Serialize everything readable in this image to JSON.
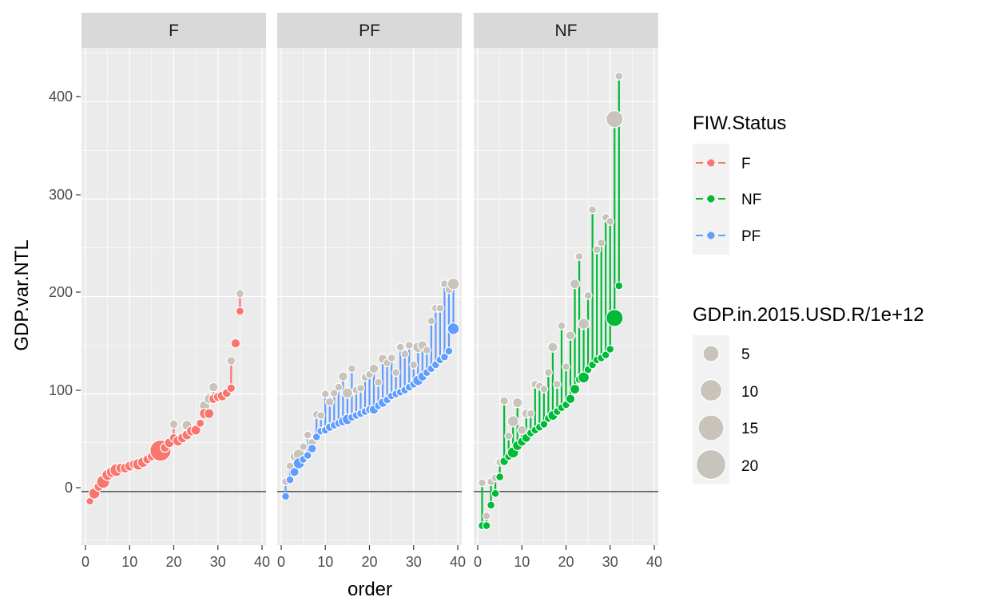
{
  "chart_data": {
    "type": "scatter",
    "xlabel": "order",
    "ylabel": "GDP.var.NTL",
    "xlim": [
      0,
      40
    ],
    "ylim": [
      -55,
      455
    ],
    "x_ticks": [
      0,
      10,
      20,
      30,
      40
    ],
    "y_ticks": [
      0,
      100,
      200,
      300,
      400
    ],
    "grid": true,
    "legend_placement": "right",
    "colors": {
      "F": "#F8766D",
      "NF": "#00BA38",
      "PF": "#619CFF",
      "marker": "#C8C4BC",
      "panel": "#EBEBEB",
      "strip": "#D9D9D9"
    },
    "color_legend": {
      "title": "FIW.Status",
      "entries": [
        "F",
        "NF",
        "PF"
      ]
    },
    "size_legend": {
      "title": "GDP.in.2015.USD.R/1e+12",
      "entries": [
        5,
        10,
        15,
        20
      ]
    },
    "facets": [
      {
        "label": "F",
        "status": "F",
        "points": [
          {
            "x": 1,
            "y_status": -10,
            "y_grey": -10,
            "size": 0.4
          },
          {
            "x": 2,
            "y_status": -2,
            "y_grey": -2,
            "size": 2.5
          },
          {
            "x": 3,
            "y_status": 5,
            "y_grey": 5,
            "size": 1.2
          },
          {
            "x": 4,
            "y_status": 10,
            "y_grey": 10,
            "size": 4.5
          },
          {
            "x": 5,
            "y_status": 17,
            "y_grey": 17,
            "size": 2.5
          },
          {
            "x": 6,
            "y_status": 20,
            "y_grey": 20,
            "size": 2.5
          },
          {
            "x": 7,
            "y_status": 22,
            "y_grey": 22,
            "size": 4.0
          },
          {
            "x": 8,
            "y_status": 24,
            "y_grey": 24,
            "size": 1.5
          },
          {
            "x": 9,
            "y_status": 24,
            "y_grey": 24,
            "size": 1.5
          },
          {
            "x": 10,
            "y_status": 26,
            "y_grey": 26,
            "size": 1.5
          },
          {
            "x": 11,
            "y_status": 28,
            "y_grey": 28,
            "size": 1.2
          },
          {
            "x": 12,
            "y_status": 28,
            "y_grey": 28,
            "size": 3.0
          },
          {
            "x": 13,
            "y_status": 30,
            "y_grey": 30,
            "size": 2.0
          },
          {
            "x": 14,
            "y_status": 33,
            "y_grey": 33,
            "size": 1.0
          },
          {
            "x": 15,
            "y_status": 36,
            "y_grey": 36,
            "size": 1.0
          },
          {
            "x": 16,
            "y_status": 38,
            "y_grey": 38,
            "size": 1.0
          },
          {
            "x": 17,
            "y_status": 42,
            "y_grey": 42,
            "size": 18.0
          },
          {
            "x": 18,
            "y_status": 45,
            "y_grey": 45,
            "size": 1.2
          },
          {
            "x": 19,
            "y_status": 50,
            "y_grey": 50,
            "size": 1.5
          },
          {
            "x": 20,
            "y_status": 55,
            "y_grey": 69,
            "size": 0.8
          },
          {
            "x": 21,
            "y_status": 52,
            "y_grey": 52,
            "size": 2.0
          },
          {
            "x": 22,
            "y_status": 55,
            "y_grey": 55,
            "size": 1.5
          },
          {
            "x": 23,
            "y_status": 58,
            "y_grey": 68,
            "size": 1.5
          },
          {
            "x": 24,
            "y_status": 62,
            "y_grey": 62,
            "size": 1.5
          },
          {
            "x": 25,
            "y_status": 63,
            "y_grey": 63,
            "size": 1.5
          },
          {
            "x": 26,
            "y_status": 70,
            "y_grey": 70,
            "size": 0.6
          },
          {
            "x": 27,
            "y_status": 80,
            "y_grey": 88,
            "size": 2.0
          },
          {
            "x": 28,
            "y_status": 80,
            "y_grey": 95,
            "size": 1.5
          },
          {
            "x": 29,
            "y_status": 95,
            "y_grey": 107,
            "size": 1.2
          },
          {
            "x": 30,
            "y_status": 97,
            "y_grey": 97,
            "size": 1.0
          },
          {
            "x": 31,
            "y_status": 98,
            "y_grey": 98,
            "size": 1.5
          },
          {
            "x": 32,
            "y_status": 101,
            "y_grey": 101,
            "size": 1.0
          },
          {
            "x": 33,
            "y_status": 106,
            "y_grey": 134,
            "size": 0.8
          },
          {
            "x": 34,
            "y_status": 152,
            "y_grey": 152,
            "size": 1.2
          },
          {
            "x": 35,
            "y_status": 185,
            "y_grey": 203,
            "size": 0.6
          }
        ]
      },
      {
        "label": "PF",
        "status": "PF",
        "points": [
          {
            "x": 1,
            "y_status": -5,
            "y_grey": 10,
            "size": 0.5
          },
          {
            "x": 2,
            "y_status": 12,
            "y_grey": 26,
            "size": 0.5
          },
          {
            "x": 3,
            "y_status": 20,
            "y_grey": 36,
            "size": 1.0
          },
          {
            "x": 4,
            "y_status": 29,
            "y_grey": 38,
            "size": 2.5
          },
          {
            "x": 5,
            "y_status": 33,
            "y_grey": 46,
            "size": 0.5
          },
          {
            "x": 6,
            "y_status": 37,
            "y_grey": 58,
            "size": 0.5
          },
          {
            "x": 7,
            "y_status": 44,
            "y_grey": 50,
            "size": 0.8
          },
          {
            "x": 8,
            "y_status": 56,
            "y_grey": 79,
            "size": 0.5
          },
          {
            "x": 9,
            "y_status": 62,
            "y_grey": 78,
            "size": 0.5
          },
          {
            "x": 10,
            "y_status": 63,
            "y_grey": 100,
            "size": 0.5
          },
          {
            "x": 11,
            "y_status": 66,
            "y_grey": 92,
            "size": 0.8
          },
          {
            "x": 12,
            "y_status": 68,
            "y_grey": 101,
            "size": 0.5
          },
          {
            "x": 13,
            "y_status": 70,
            "y_grey": 107,
            "size": 0.5
          },
          {
            "x": 14,
            "y_status": 72,
            "y_grey": 118,
            "size": 1.2
          },
          {
            "x": 15,
            "y_status": 74,
            "y_grey": 101,
            "size": 2.0
          },
          {
            "x": 16,
            "y_status": 76,
            "y_grey": 126,
            "size": 0.5
          },
          {
            "x": 17,
            "y_status": 78,
            "y_grey": 104,
            "size": 0.5
          },
          {
            "x": 18,
            "y_status": 80,
            "y_grey": 106,
            "size": 0.5
          },
          {
            "x": 19,
            "y_status": 82,
            "y_grey": 117,
            "size": 0.5
          },
          {
            "x": 20,
            "y_status": 84,
            "y_grey": 120,
            "size": 0.5
          },
          {
            "x": 21,
            "y_status": 84,
            "y_grey": 126,
            "size": 1.2
          },
          {
            "x": 22,
            "y_status": 88,
            "y_grey": 112,
            "size": 0.5
          },
          {
            "x": 23,
            "y_status": 91,
            "y_grey": 136,
            "size": 1.2
          },
          {
            "x": 24,
            "y_status": 94,
            "y_grey": 132,
            "size": 0.5
          },
          {
            "x": 25,
            "y_status": 98,
            "y_grey": 137,
            "size": 0.5
          },
          {
            "x": 26,
            "y_status": 100,
            "y_grey": 122,
            "size": 0.5
          },
          {
            "x": 27,
            "y_status": 102,
            "y_grey": 148,
            "size": 0.5
          },
          {
            "x": 28,
            "y_status": 104,
            "y_grey": 141,
            "size": 0.5
          },
          {
            "x": 29,
            "y_status": 107,
            "y_grey": 150,
            "size": 0.5
          },
          {
            "x": 30,
            "y_status": 110,
            "y_grey": 130,
            "size": 0.5
          },
          {
            "x": 31,
            "y_status": 114,
            "y_grey": 148,
            "size": 2.0
          },
          {
            "x": 32,
            "y_status": 118,
            "y_grey": 150,
            "size": 1.2
          },
          {
            "x": 33,
            "y_status": 122,
            "y_grey": 145,
            "size": 0.5
          },
          {
            "x": 34,
            "y_status": 126,
            "y_grey": 175,
            "size": 0.5
          },
          {
            "x": 35,
            "y_status": 130,
            "y_grey": 188,
            "size": 0.5
          },
          {
            "x": 36,
            "y_status": 135,
            "y_grey": 188,
            "size": 0.5
          },
          {
            "x": 37,
            "y_status": 138,
            "y_grey": 213,
            "size": 0.5
          },
          {
            "x": 38,
            "y_status": 144,
            "y_grey": 207,
            "size": 0.5
          },
          {
            "x": 39,
            "y_status": 167,
            "y_grey": 213,
            "size": 3.0
          }
        ]
      },
      {
        "label": "NF",
        "status": "NF",
        "points": [
          {
            "x": 1,
            "y_status": -35,
            "y_grey": 9,
            "size": 0.5
          },
          {
            "x": 2,
            "y_status": -35,
            "y_grey": -25,
            "size": 0.5
          },
          {
            "x": 3,
            "y_status": -14,
            "y_grey": 10,
            "size": 0.5
          },
          {
            "x": 4,
            "y_status": -2,
            "y_grey": 14,
            "size": 0.5
          },
          {
            "x": 5,
            "y_status": 15,
            "y_grey": 30,
            "size": 0.5
          },
          {
            "x": 6,
            "y_status": 31,
            "y_grey": 93,
            "size": 0.8
          },
          {
            "x": 7,
            "y_status": 36,
            "y_grey": 57,
            "size": 0.5
          },
          {
            "x": 8,
            "y_status": 40,
            "y_grey": 72,
            "size": 2.5
          },
          {
            "x": 9,
            "y_status": 47,
            "y_grey": 91,
            "size": 1.5
          },
          {
            "x": 10,
            "y_status": 51,
            "y_grey": 63,
            "size": 1.0
          },
          {
            "x": 11,
            "y_status": 55,
            "y_grey": 80,
            "size": 1.0
          },
          {
            "x": 12,
            "y_status": 60,
            "y_grey": 80,
            "size": 0.5
          },
          {
            "x": 13,
            "y_status": 63,
            "y_grey": 110,
            "size": 0.5
          },
          {
            "x": 14,
            "y_status": 66,
            "y_grey": 108,
            "size": 0.5
          },
          {
            "x": 15,
            "y_status": 69,
            "y_grey": 105,
            "size": 0.5
          },
          {
            "x": 16,
            "y_status": 75,
            "y_grey": 122,
            "size": 0.5
          },
          {
            "x": 17,
            "y_status": 78,
            "y_grey": 148,
            "size": 1.5
          },
          {
            "x": 18,
            "y_status": 82,
            "y_grey": 110,
            "size": 0.5
          },
          {
            "x": 19,
            "y_status": 86,
            "y_grey": 170,
            "size": 0.5
          },
          {
            "x": 20,
            "y_status": 89,
            "y_grey": 128,
            "size": 0.5
          },
          {
            "x": 21,
            "y_status": 95,
            "y_grey": 160,
            "size": 1.2
          },
          {
            "x": 22,
            "y_status": 105,
            "y_grey": 213,
            "size": 1.5
          },
          {
            "x": 23,
            "y_status": 115,
            "y_grey": 241,
            "size": 0.5
          },
          {
            "x": 24,
            "y_status": 117,
            "y_grey": 172,
            "size": 2.5
          },
          {
            "x": 25,
            "y_status": 125,
            "y_grey": 201,
            "size": 0.5
          },
          {
            "x": 26,
            "y_status": 130,
            "y_grey": 289,
            "size": 0.5
          },
          {
            "x": 27,
            "y_status": 135,
            "y_grey": 248,
            "size": 0.5
          },
          {
            "x": 28,
            "y_status": 137,
            "y_grey": 255,
            "size": 0.5
          },
          {
            "x": 29,
            "y_status": 140,
            "y_grey": 281,
            "size": 0.5
          },
          {
            "x": 30,
            "y_status": 146,
            "y_grey": 277,
            "size": 0.5
          },
          {
            "x": 31,
            "y_status": 178,
            "y_grey": 382,
            "size": 10.0
          },
          {
            "x": 32,
            "y_status": 211,
            "y_grey": 426,
            "size": 0.5
          }
        ]
      }
    ]
  }
}
